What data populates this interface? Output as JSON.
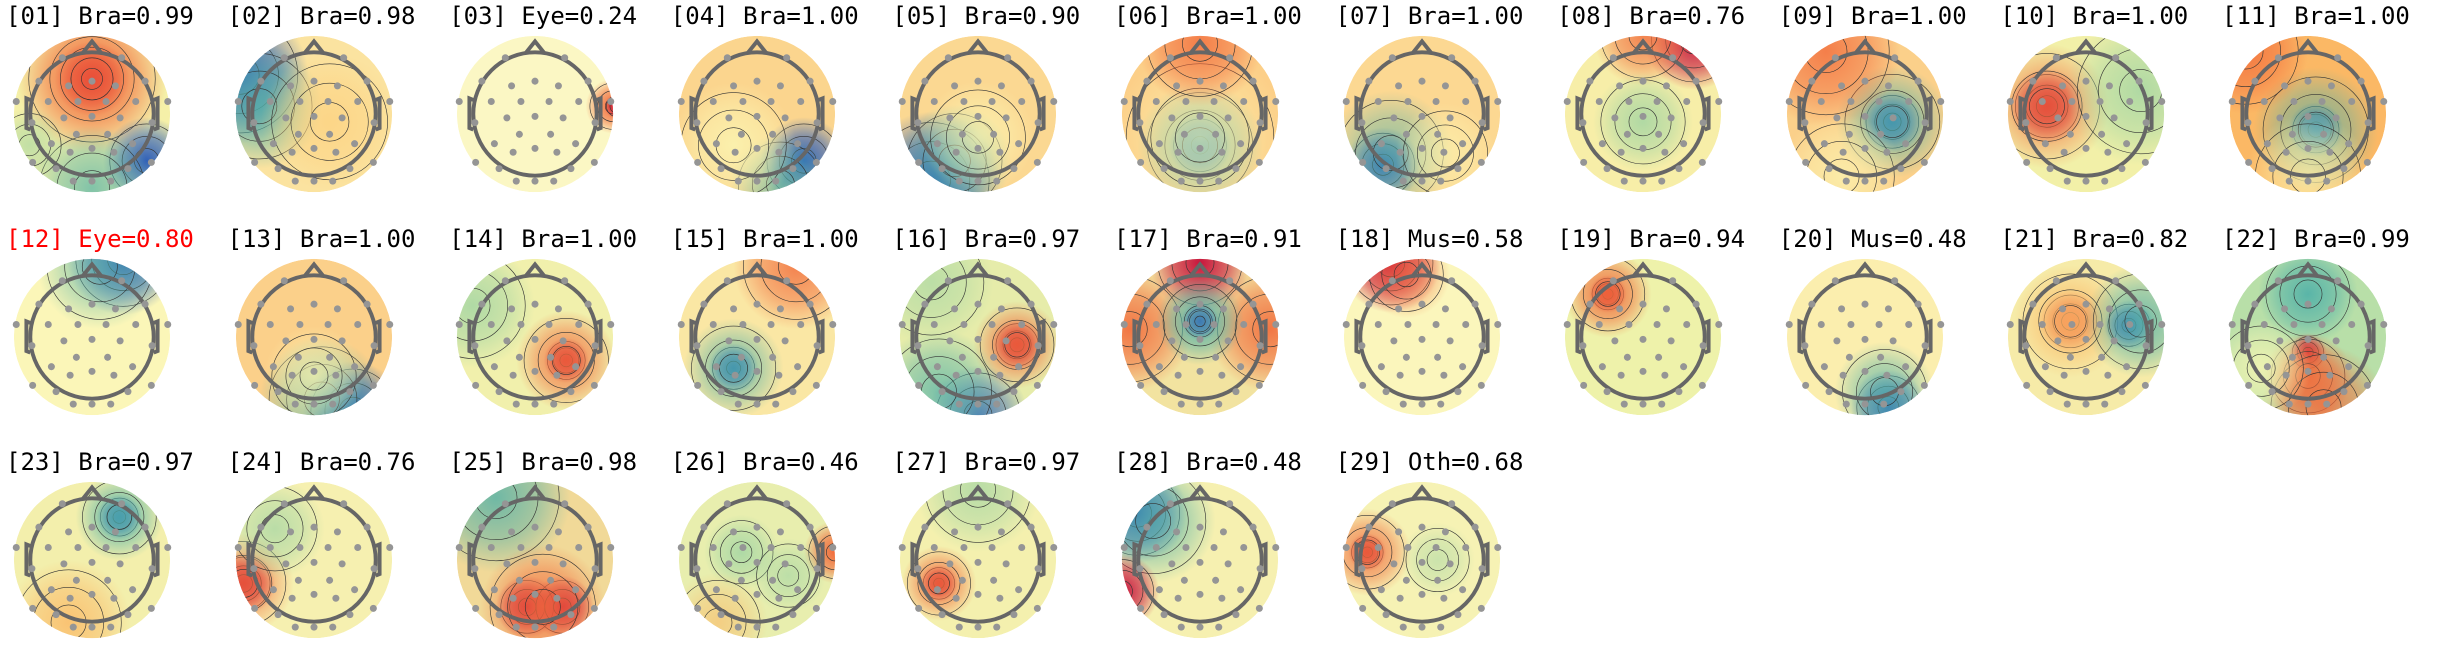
{
  "chart_data": {
    "type": "topomap",
    "title": "",
    "layout": {
      "columns": 11,
      "rows": 3
    },
    "colormap": "Spectral_r",
    "components": [
      {
        "label": "[01] Bra=0.99",
        "index": "01",
        "class": "Bra",
        "prob": 0.99,
        "color": "#000000"
      },
      {
        "label": "[02] Bra=0.98",
        "index": "02",
        "class": "Bra",
        "prob": 0.98,
        "color": "#000000"
      },
      {
        "label": "[03] Eye=0.24",
        "index": "03",
        "class": "Eye",
        "prob": 0.24,
        "color": "#000000"
      },
      {
        "label": "[04] Bra=1.00",
        "index": "04",
        "class": "Bra",
        "prob": 1.0,
        "color": "#000000"
      },
      {
        "label": "[05] Bra=0.90",
        "index": "05",
        "class": "Bra",
        "prob": 0.9,
        "color": "#000000"
      },
      {
        "label": "[06] Bra=1.00",
        "index": "06",
        "class": "Bra",
        "prob": 1.0,
        "color": "#000000"
      },
      {
        "label": "[07] Bra=1.00",
        "index": "07",
        "class": "Bra",
        "prob": 1.0,
        "color": "#000000"
      },
      {
        "label": "[08] Bra=0.76",
        "index": "08",
        "class": "Bra",
        "prob": 0.76,
        "color": "#000000"
      },
      {
        "label": "[09] Bra=1.00",
        "index": "09",
        "class": "Bra",
        "prob": 1.0,
        "color": "#000000"
      },
      {
        "label": "[10] Bra=1.00",
        "index": "10",
        "class": "Bra",
        "prob": 1.0,
        "color": "#000000"
      },
      {
        "label": "[11] Bra=1.00",
        "index": "11",
        "class": "Bra",
        "prob": 1.0,
        "color": "#000000"
      },
      {
        "label": "[12] Eye=0.80",
        "index": "12",
        "class": "Eye",
        "prob": 0.8,
        "color": "#ff0000"
      },
      {
        "label": "[13] Bra=1.00",
        "index": "13",
        "class": "Bra",
        "prob": 1.0,
        "color": "#000000"
      },
      {
        "label": "[14] Bra=1.00",
        "index": "14",
        "class": "Bra",
        "prob": 1.0,
        "color": "#000000"
      },
      {
        "label": "[15] Bra=1.00",
        "index": "15",
        "class": "Bra",
        "prob": 1.0,
        "color": "#000000"
      },
      {
        "label": "[16] Bra=0.97",
        "index": "16",
        "class": "Bra",
        "prob": 0.97,
        "color": "#000000"
      },
      {
        "label": "[17] Bra=0.91",
        "index": "17",
        "class": "Bra",
        "prob": 0.91,
        "color": "#000000"
      },
      {
        "label": "[18] Mus=0.58",
        "index": "18",
        "class": "Mus",
        "prob": 0.58,
        "color": "#000000"
      },
      {
        "label": "[19] Bra=0.94",
        "index": "19",
        "class": "Bra",
        "prob": 0.94,
        "color": "#000000"
      },
      {
        "label": "[20] Mus=0.48",
        "index": "20",
        "class": "Mus",
        "prob": 0.48,
        "color": "#000000"
      },
      {
        "label": "[21] Bra=0.82",
        "index": "21",
        "class": "Bra",
        "prob": 0.82,
        "color": "#000000"
      },
      {
        "label": "[22] Bra=0.99",
        "index": "22",
        "class": "Bra",
        "prob": 0.99,
        "color": "#000000"
      },
      {
        "label": "[23] Bra=0.97",
        "index": "23",
        "class": "Bra",
        "prob": 0.97,
        "color": "#000000"
      },
      {
        "label": "[24] Bra=0.76",
        "index": "24",
        "class": "Bra",
        "prob": 0.76,
        "color": "#000000"
      },
      {
        "label": "[25] Bra=0.98",
        "index": "25",
        "class": "Bra",
        "prob": 0.98,
        "color": "#000000"
      },
      {
        "label": "[26] Bra=0.46",
        "index": "26",
        "class": "Bra",
        "prob": 0.46,
        "color": "#000000"
      },
      {
        "label": "[27] Bra=0.97",
        "index": "27",
        "class": "Bra",
        "prob": 0.97,
        "color": "#000000"
      },
      {
        "label": "[28] Bra=0.48",
        "index": "28",
        "class": "Bra",
        "prob": 0.48,
        "color": "#000000"
      },
      {
        "label": "[29] Oth=0.68",
        "index": "29",
        "class": "Oth",
        "prob": 0.68,
        "color": "#000000"
      }
    ]
  }
}
